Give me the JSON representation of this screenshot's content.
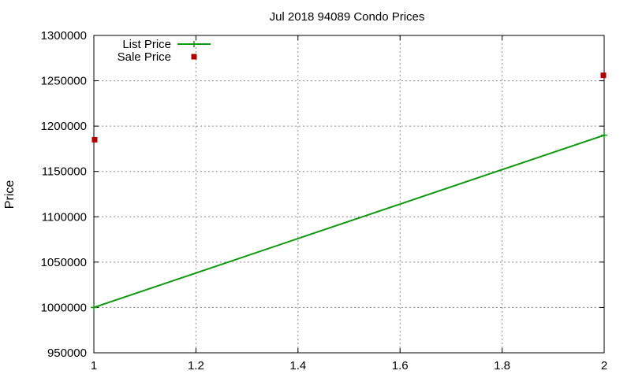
{
  "chart_data": {
    "type": "line",
    "title": "Jul 2018 94089 Condo Prices",
    "xlabel": "",
    "ylabel": "Price",
    "xlim": [
      1,
      2
    ],
    "ylim": [
      950000,
      1300000
    ],
    "x_ticks": [
      "1",
      "1.2",
      "1.4",
      "1.6",
      "1.8",
      "2"
    ],
    "y_ticks": [
      "950000",
      "1000000",
      "1050000",
      "1100000",
      "1150000",
      "1200000",
      "1250000",
      "1300000"
    ],
    "grid": true,
    "legend_position": "top-left",
    "series": [
      {
        "name": "List Price",
        "style": "line-with-plus-markers",
        "color": "#109810",
        "points": [
          [
            1,
            1000000
          ],
          [
            2,
            1190000
          ]
        ]
      },
      {
        "name": "Sale Price",
        "style": "square-markers",
        "color": "#b00000",
        "points": [
          [
            1,
            1185000
          ],
          [
            2,
            1256000
          ]
        ]
      }
    ]
  }
}
